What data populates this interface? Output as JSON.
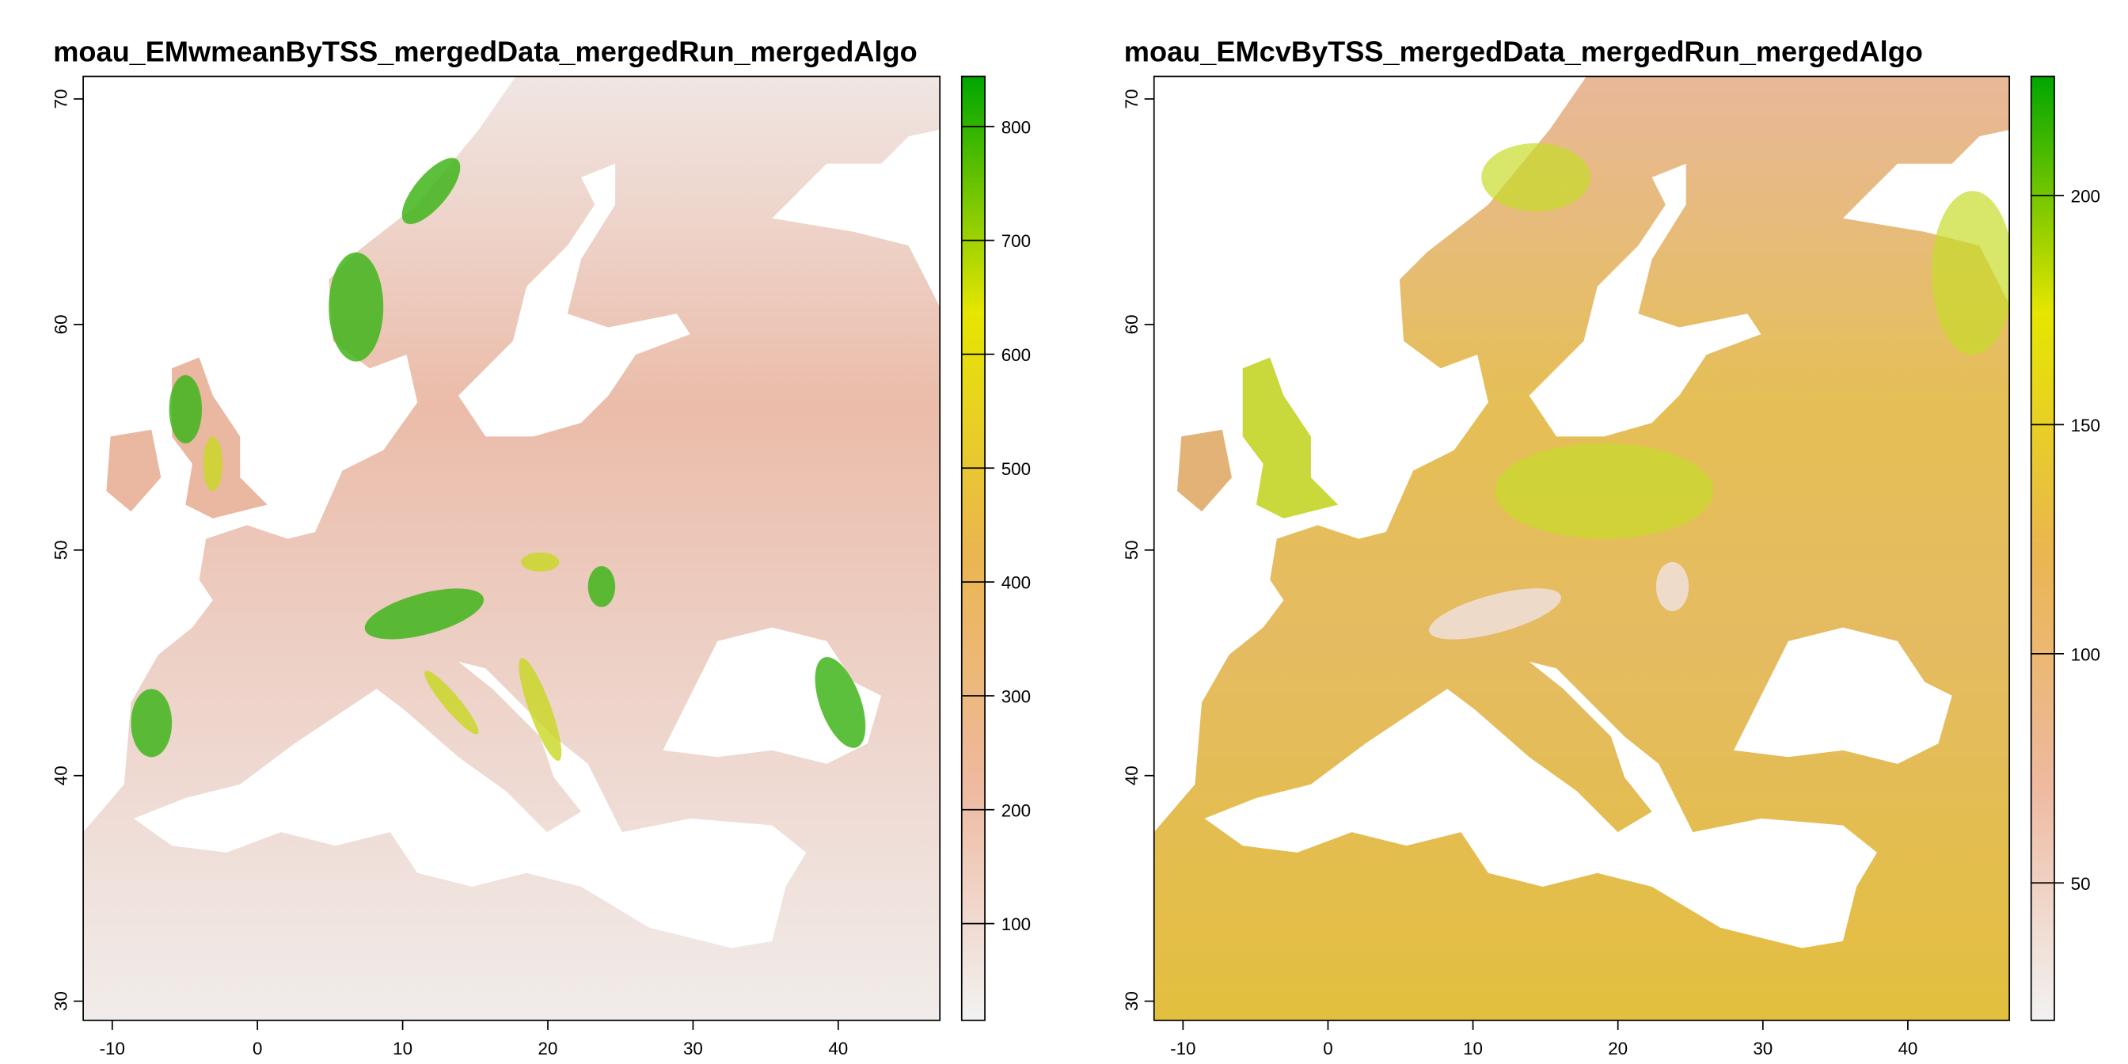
{
  "chart_data": [
    {
      "type": "raster",
      "title": "moau_EMwmeanByTSS_mergedData_mergedRun_mergedAlgo",
      "xlim": [
        -12,
        47
      ],
      "ylim": [
        29.15,
        71
      ],
      "xticks": [
        -10,
        0,
        10,
        20,
        30,
        40
      ],
      "yticks": [
        30,
        40,
        50,
        60,
        70
      ],
      "zlim": [
        15,
        844
      ],
      "zticks": [
        100,
        200,
        300,
        400,
        500,
        600,
        700,
        800
      ],
      "palette": [
        "#f2f2f2",
        "#eeb99f",
        "#eab64e",
        "#e6e600",
        "#00a600"
      ]
    },
    {
      "type": "raster",
      "title": "moau_EMcvByTSS_mergedData_mergedRun_mergedAlgo",
      "xlim": [
        -12,
        47
      ],
      "ylim": [
        29.15,
        71
      ],
      "xticks": [
        -10,
        0,
        10,
        20,
        30,
        40
      ],
      "yticks": [
        30,
        40,
        50,
        60,
        70
      ],
      "zlim": [
        20,
        226
      ],
      "zticks": [
        50,
        100,
        150,
        200
      ],
      "palette": [
        "#f2f2f2",
        "#eeb99f",
        "#eab64e",
        "#e6e600",
        "#00a600"
      ]
    }
  ]
}
